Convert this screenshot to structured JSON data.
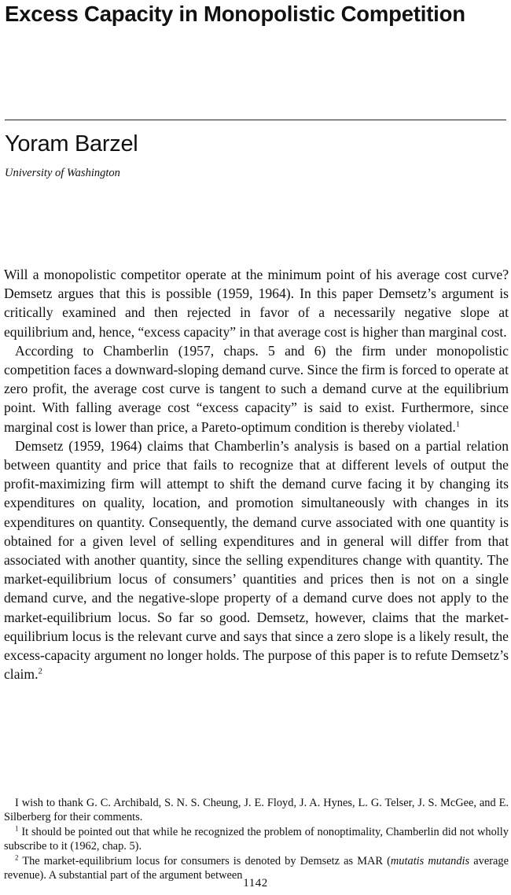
{
  "article": {
    "title": "Excess Capacity in Monopolistic Competition",
    "author": "Yoram Barzel",
    "affiliation": "University of Washington"
  },
  "body": {
    "p1": "Will a monopolistic competitor operate at the minimum point of his average cost curve? Demsetz argues that this is possible (1959, 1964). In this paper Demsetz’s argument is critically examined and then rejected in favor of a necessarily negative slope at equilibrium and, hence, “excess capacity” in that average cost is higher than marginal cost.",
    "p2": "According to Chamberlin (1957, chaps. 5 and 6) the firm under monopolistic competition faces a downward-sloping demand curve. Since the firm is forced to operate at zero profit, the average cost curve is tangent to such a demand curve at the equilibrium point. With falling average cost “excess capacity” is said to exist. Furthermore, since marginal cost is lower than price, a Pareto-optimum condition is thereby violated.",
    "p2_ref": "1",
    "p3": "Demsetz (1959, 1964) claims that Chamberlin’s analysis is based on a partial relation between quantity and price that fails to recognize that at different levels of output the profit-maximizing firm will attempt to shift the demand curve facing it by changing its expenditures on quality, loca­tion, and promotion simultaneously with changes in its expenditures on quantity. Consequently, the demand curve associated with one quantity is obtained for a given level of selling expenditures and in general will differ from that associated with another quantity, since the selling expendi­tures change with quantity. The market-equilibrium locus of consumers’ quantities and prices then is not on a single demand curve, and the negative-slope property of a demand curve does not apply to the market-equilibrium locus. So far so good. Demsetz, however, claims that the market-equilibrium locus is the relevant curve and says that since a zero slope is a likely result, the excess-capacity argument no longer holds. The purpose of this paper is to refute Demsetz’s claim.",
    "p3_ref": "2"
  },
  "footnotes": {
    "ack": "I wish to thank G. C. Archibald, S. N. S. Cheung, J. E. Floyd, J. A. Hynes, L. G. Telser, J. S. McGee, and E. Silberberg for their comments.",
    "n1_mark": "1",
    "n1": "It should be pointed out that while he recognized the problem of nonoptimality, Chamberlin did not wholly subscribe to it (1962, chap. 5).",
    "n2_mark": "2",
    "n2_a": "The market-equilibrium locus for consumers is denoted by Demsetz as MAR (",
    "n2_italic": "mutatis mutandis",
    "n2_b": " average revenue). A substantial part of the argument between"
  },
  "page_number": "1142"
}
